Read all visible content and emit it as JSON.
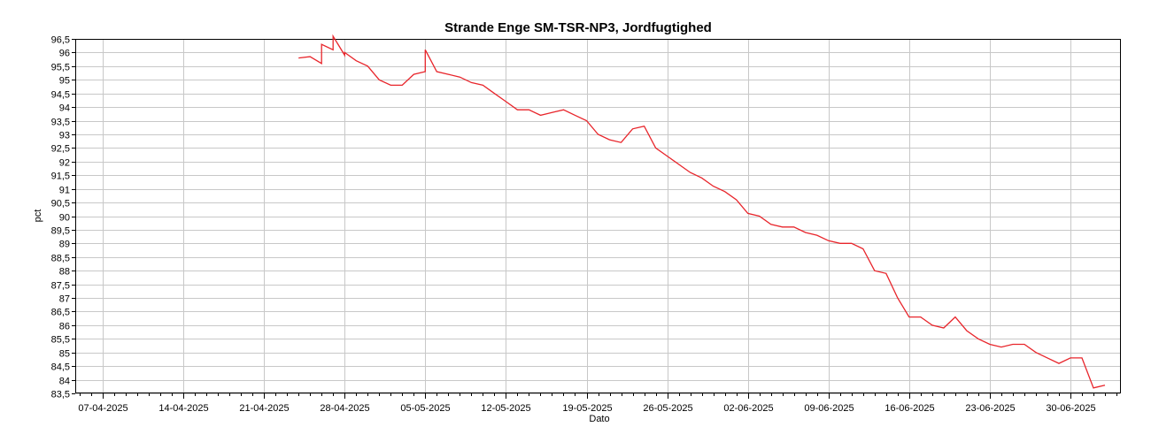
{
  "chart_data": {
    "type": "line",
    "title": "Strande Enge SM-TSR-NP3, Jordfugtighed",
    "xlabel": "Dato",
    "ylabel": "pct",
    "ylim": [
      83.5,
      96.5
    ],
    "y_ticks": [
      "83,5",
      "84",
      "84,5",
      "85",
      "85,5",
      "86",
      "86,5",
      "87",
      "87,5",
      "88",
      "88,5",
      "89",
      "89,5",
      "90",
      "90,5",
      "91",
      "91,5",
      "92",
      "92,5",
      "93",
      "93,5",
      "94",
      "94,5",
      "95",
      "95,5",
      "96",
      "96,5"
    ],
    "x_ticks": [
      "07-04-2025",
      "14-04-2025",
      "21-04-2025",
      "28-04-2025",
      "05-05-2025",
      "12-05-2025",
      "19-05-2025",
      "26-05-2025",
      "02-06-2025",
      "09-06-2025",
      "16-06-2025",
      "23-06-2025",
      "30-06-2025"
    ],
    "grid": true,
    "series": [
      {
        "color": "#e8252b",
        "x": [
          "2025-04-24",
          "2025-04-25",
          "2025-04-26",
          "2025-04-26",
          "2025-04-27",
          "2025-04-27",
          "2025-04-28",
          "2025-04-28",
          "2025-04-29",
          "2025-04-30",
          "2025-05-01",
          "2025-05-02",
          "2025-05-03",
          "2025-05-04",
          "2025-05-05",
          "2025-05-05",
          "2025-05-06",
          "2025-05-07",
          "2025-05-08",
          "2025-05-09",
          "2025-05-10",
          "2025-05-11",
          "2025-05-12",
          "2025-05-13",
          "2025-05-14",
          "2025-05-15",
          "2025-05-16",
          "2025-05-17",
          "2025-05-18",
          "2025-05-19",
          "2025-05-20",
          "2025-05-21",
          "2025-05-22",
          "2025-05-23",
          "2025-05-24",
          "2025-05-25",
          "2025-05-26",
          "2025-05-27",
          "2025-05-28",
          "2025-05-29",
          "2025-05-30",
          "2025-05-31",
          "2025-06-01",
          "2025-06-02",
          "2025-06-03",
          "2025-06-04",
          "2025-06-05",
          "2025-06-06",
          "2025-06-07",
          "2025-06-08",
          "2025-06-09",
          "2025-06-10",
          "2025-06-11",
          "2025-06-12",
          "2025-06-13",
          "2025-06-14",
          "2025-06-15",
          "2025-06-16",
          "2025-06-17",
          "2025-06-18",
          "2025-06-19",
          "2025-06-20",
          "2025-06-21",
          "2025-06-22",
          "2025-06-23",
          "2025-06-24",
          "2025-06-25",
          "2025-06-26",
          "2025-06-27",
          "2025-06-28",
          "2025-06-29",
          "2025-06-30",
          "2025-07-01",
          "2025-07-02",
          "2025-07-03"
        ],
        "y": [
          95.8,
          95.85,
          95.6,
          96.3,
          96.1,
          96.6,
          95.9,
          96.0,
          95.7,
          95.5,
          95.0,
          94.8,
          94.8,
          95.2,
          95.3,
          96.1,
          95.3,
          95.2,
          95.1,
          94.9,
          94.8,
          94.5,
          94.2,
          93.9,
          93.9,
          93.7,
          93.8,
          93.9,
          93.7,
          93.5,
          93.0,
          92.8,
          92.7,
          93.2,
          93.3,
          92.5,
          92.2,
          91.9,
          91.6,
          91.4,
          91.1,
          90.9,
          90.6,
          90.1,
          90.0,
          89.7,
          89.6,
          89.6,
          89.4,
          89.3,
          89.1,
          89.0,
          89.0,
          88.8,
          88.0,
          87.9,
          87.0,
          86.3,
          86.3,
          86.0,
          85.9,
          86.3,
          85.8,
          85.5,
          85.3,
          85.2,
          85.3,
          85.3,
          85.0,
          84.8,
          84.6,
          84.8,
          84.8,
          83.7,
          83.8
        ]
      }
    ]
  }
}
